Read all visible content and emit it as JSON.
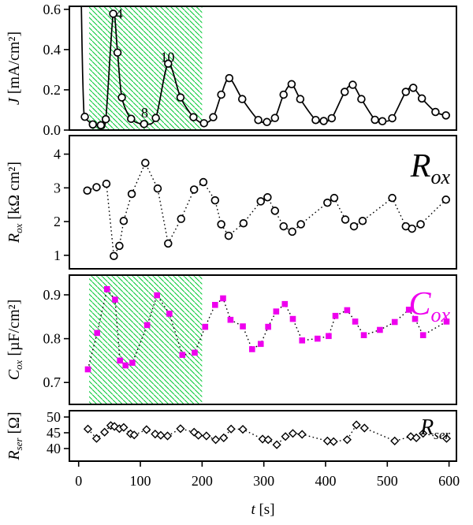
{
  "chart_data": {
    "type": "line",
    "title": "",
    "x": {
      "label_symbol": "t",
      "label_unit": " [s]",
      "ticks": [
        0,
        100,
        200,
        300,
        400,
        500,
        600
      ],
      "tick_labels": [
        "0",
        "100",
        "200",
        "300",
        "400",
        "500",
        "600"
      ],
      "lim": [
        -15,
        612
      ]
    },
    "hatch_region": {
      "t_start": 17,
      "t_end": 200
    },
    "colors": {
      "black": "#000000",
      "magenta": "#ee00ee",
      "hatch_green": "#00c832",
      "background": "#ffffff"
    },
    "panels": [
      {
        "id": "J",
        "ylabel": {
          "symbol": "J",
          "sub": "",
          "unit": " [mA/cm²]",
          "full": "J [mA/cm2]"
        },
        "yticks": [
          0.0,
          0.2,
          0.4,
          0.6
        ],
        "ytick_labels": [
          "0.0",
          "0.2",
          "0.4",
          "0.6"
        ],
        "ylim": [
          0,
          0.615
        ],
        "marker": "circle",
        "line_style": "solid",
        "color": "#000000",
        "hatch": true,
        "lead_line": {
          "t": [
            3.5,
            5,
            6.5,
            8
          ],
          "v": [
            0.8,
            0.5,
            0.28,
            0.13
          ]
        },
        "points": {
          "t": [
            10,
            23,
            36,
            44,
            56,
            63,
            70,
            85,
            106,
            125,
            145,
            165,
            186,
            203,
            218,
            231,
            244,
            265,
            291,
            305,
            318,
            332,
            345,
            359,
            384,
            397,
            410,
            431,
            444,
            458,
            480,
            492,
            508,
            530,
            542,
            556,
            578,
            595
          ],
          "v": [
            0.066,
            0.028,
            0.024,
            0.054,
            0.578,
            0.385,
            0.162,
            0.056,
            0.03,
            0.06,
            0.33,
            0.162,
            0.064,
            0.034,
            0.064,
            0.176,
            0.258,
            0.154,
            0.05,
            0.04,
            0.06,
            0.176,
            0.228,
            0.154,
            0.05,
            0.045,
            0.059,
            0.19,
            0.225,
            0.154,
            0.051,
            0.044,
            0.059,
            0.19,
            0.21,
            0.157,
            0.09,
            0.073
          ]
        },
        "annotations": [
          {
            "label": "4",
            "t": 66,
            "v": 0.555
          },
          {
            "label": "8",
            "t": 107,
            "v": 0.062
          },
          {
            "label": "10",
            "t": 144,
            "v": 0.338
          }
        ],
        "corner_label": null
      },
      {
        "id": "Rox",
        "ylabel": {
          "symbol": "R",
          "sub": "ox",
          "unit": " [kΩ cm²]",
          "full": "Rox [kOhm cm2]"
        },
        "yticks": [
          1,
          2,
          3,
          4
        ],
        "ytick_labels": [
          "1",
          "2",
          "3",
          "4"
        ],
        "ylim": [
          0.6,
          4.55
        ],
        "marker": "circle",
        "line_style": "dotted",
        "color": "#000000",
        "hatch": false,
        "points": {
          "t": [
            14,
            29,
            45,
            57,
            66,
            73,
            86,
            108,
            128,
            145,
            166,
            187,
            202,
            221,
            231,
            243,
            267,
            295,
            306,
            318,
            332,
            346,
            360,
            403,
            414,
            432,
            446,
            460,
            508,
            530,
            540,
            554,
            595
          ],
          "v": [
            2.92,
            3.02,
            3.12,
            0.98,
            1.28,
            2.02,
            2.82,
            3.74,
            2.98,
            1.35,
            2.08,
            2.95,
            3.17,
            2.63,
            1.92,
            1.58,
            1.95,
            2.6,
            2.72,
            2.32,
            1.86,
            1.7,
            1.92,
            2.56,
            2.7,
            2.06,
            1.86,
            2.02,
            2.7,
            1.86,
            1.79,
            1.92,
            2.65
          ]
        },
        "annotations": [],
        "corner_label": {
          "text": "R",
          "sub": "ox",
          "color": "#000000",
          "size": 42,
          "dy": 52
        }
      },
      {
        "id": "Cox",
        "ylabel": {
          "symbol": "C",
          "sub": "ox",
          "unit": " [µF/cm²]",
          "full": "Cox [uF/cm2]"
        },
        "yticks": [
          0.7,
          0.8,
          0.9
        ],
        "ytick_labels": [
          "0.7",
          "0.8",
          "0.9"
        ],
        "ylim": [
          0.65,
          0.945
        ],
        "marker": "square",
        "line_style": "dotted",
        "color": "#ee00ee",
        "hatch": true,
        "points": {
          "t": [
            15,
            30,
            46,
            59,
            67,
            76,
            87,
            111,
            127,
            147,
            168,
            188,
            205,
            221,
            234,
            246,
            266,
            281,
            295,
            307,
            320,
            334,
            347,
            362,
            387,
            405,
            416,
            435,
            448,
            462,
            488,
            512,
            535,
            545,
            558,
            596
          ],
          "v": [
            0.73,
            0.813,
            0.913,
            0.889,
            0.75,
            0.739,
            0.745,
            0.831,
            0.899,
            0.857,
            0.763,
            0.768,
            0.827,
            0.877,
            0.892,
            0.843,
            0.828,
            0.776,
            0.788,
            0.827,
            0.862,
            0.879,
            0.845,
            0.796,
            0.8,
            0.806,
            0.852,
            0.865,
            0.839,
            0.808,
            0.82,
            0.838,
            0.866,
            0.845,
            0.808,
            0.839
          ]
        },
        "annotations": [],
        "corner_label": {
          "text": "C",
          "sub": "ox",
          "color": "#ee00ee",
          "size": 42,
          "dy": 50
        }
      },
      {
        "id": "Rser",
        "ylabel": {
          "symbol": "R",
          "sub": "ser",
          "unit": " [Ω]",
          "full": "Rser [Ohm]"
        },
        "yticks": [
          40,
          45,
          50
        ],
        "ytick_labels": [
          "40",
          "45",
          "50"
        ],
        "ylim": [
          36,
          52
        ],
        "marker": "diamond",
        "line_style": "dotted",
        "color": "#000000",
        "hatch": false,
        "points": {
          "t": [
            15,
            29,
            42,
            52,
            58,
            66,
            73,
            84,
            90,
            110,
            124,
            133,
            144,
            165,
            187,
            194,
            207,
            222,
            235,
            247,
            266,
            298,
            307,
            321,
            335,
            347,
            362,
            403,
            413,
            435,
            450,
            463,
            512,
            538,
            547,
            558,
            596
          ],
          "v": [
            46.2,
            43.2,
            45.2,
            47.3,
            47.0,
            46.3,
            46.7,
            44.7,
            44.3,
            46.0,
            44.6,
            44.2,
            44.0,
            46.3,
            45.2,
            44.2,
            44.0,
            42.8,
            43.4,
            46.2,
            46.1,
            43.0,
            42.8,
            41.2,
            43.8,
            44.8,
            44.5,
            42.4,
            42.2,
            42.8,
            47.5,
            46.5,
            42.4,
            43.8,
            43.4,
            44.8,
            43.2
          ]
        },
        "annotations": [],
        "corner_label": {
          "text": "R",
          "sub": "ser",
          "color": "#000000",
          "size": 28,
          "dy": 30
        }
      }
    ]
  }
}
